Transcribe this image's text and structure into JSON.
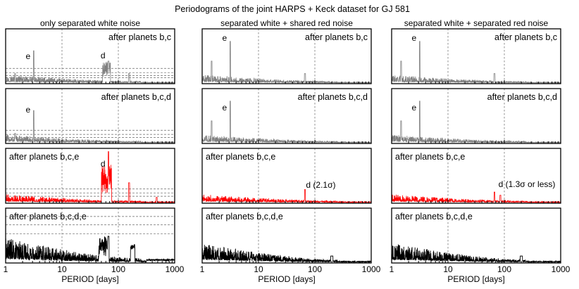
{
  "chart_data": {
    "type": "line",
    "title": "Periodograms of the joint HARPS + Keck dataset for GJ 581",
    "xlabel": "PERIOD [days]",
    "xscale": "log",
    "xlim": [
      1,
      1000
    ],
    "xticks": [
      "1",
      "10",
      "100",
      "1000"
    ],
    "reference_periods": [
      10,
      100
    ],
    "columns": [
      "only separated white noise",
      "separated white + shared red noise",
      "separated white + separated red noise"
    ],
    "rows": [
      {
        "label": "after planets b,c",
        "color": "#808080"
      },
      {
        "label": "after planets b,c,d",
        "color": "#808080"
      },
      {
        "label": "after planets b,c,e",
        "color": "#ff0000"
      },
      {
        "label": "after planets b,c,d,e",
        "color": "#000000"
      }
    ],
    "peaks": {
      "e_period": 3.15,
      "d_period": 66.8,
      "alias_period": 1.47
    },
    "annotations": [
      {
        "col": 0,
        "row": 0,
        "text": "e",
        "x": 3.15
      },
      {
        "col": 0,
        "row": 0,
        "text": "d",
        "x": 60
      },
      {
        "col": 0,
        "row": 1,
        "text": "e",
        "x": 3.15
      },
      {
        "col": 0,
        "row": 2,
        "text": "d",
        "x": 60
      },
      {
        "col": 1,
        "row": 0,
        "text": "e",
        "x": 3.15
      },
      {
        "col": 1,
        "row": 1,
        "text": "e",
        "x": 3.15
      },
      {
        "col": 1,
        "row": 2,
        "text": "d (2.1σ)",
        "x": 62
      },
      {
        "col": 2,
        "row": 0,
        "text": "e",
        "x": 3.15
      },
      {
        "col": 2,
        "row": 1,
        "text": "e",
        "x": 3.15
      },
      {
        "col": 2,
        "row": 2,
        "text": "d (1.3σ or less)",
        "x": 70
      }
    ]
  }
}
